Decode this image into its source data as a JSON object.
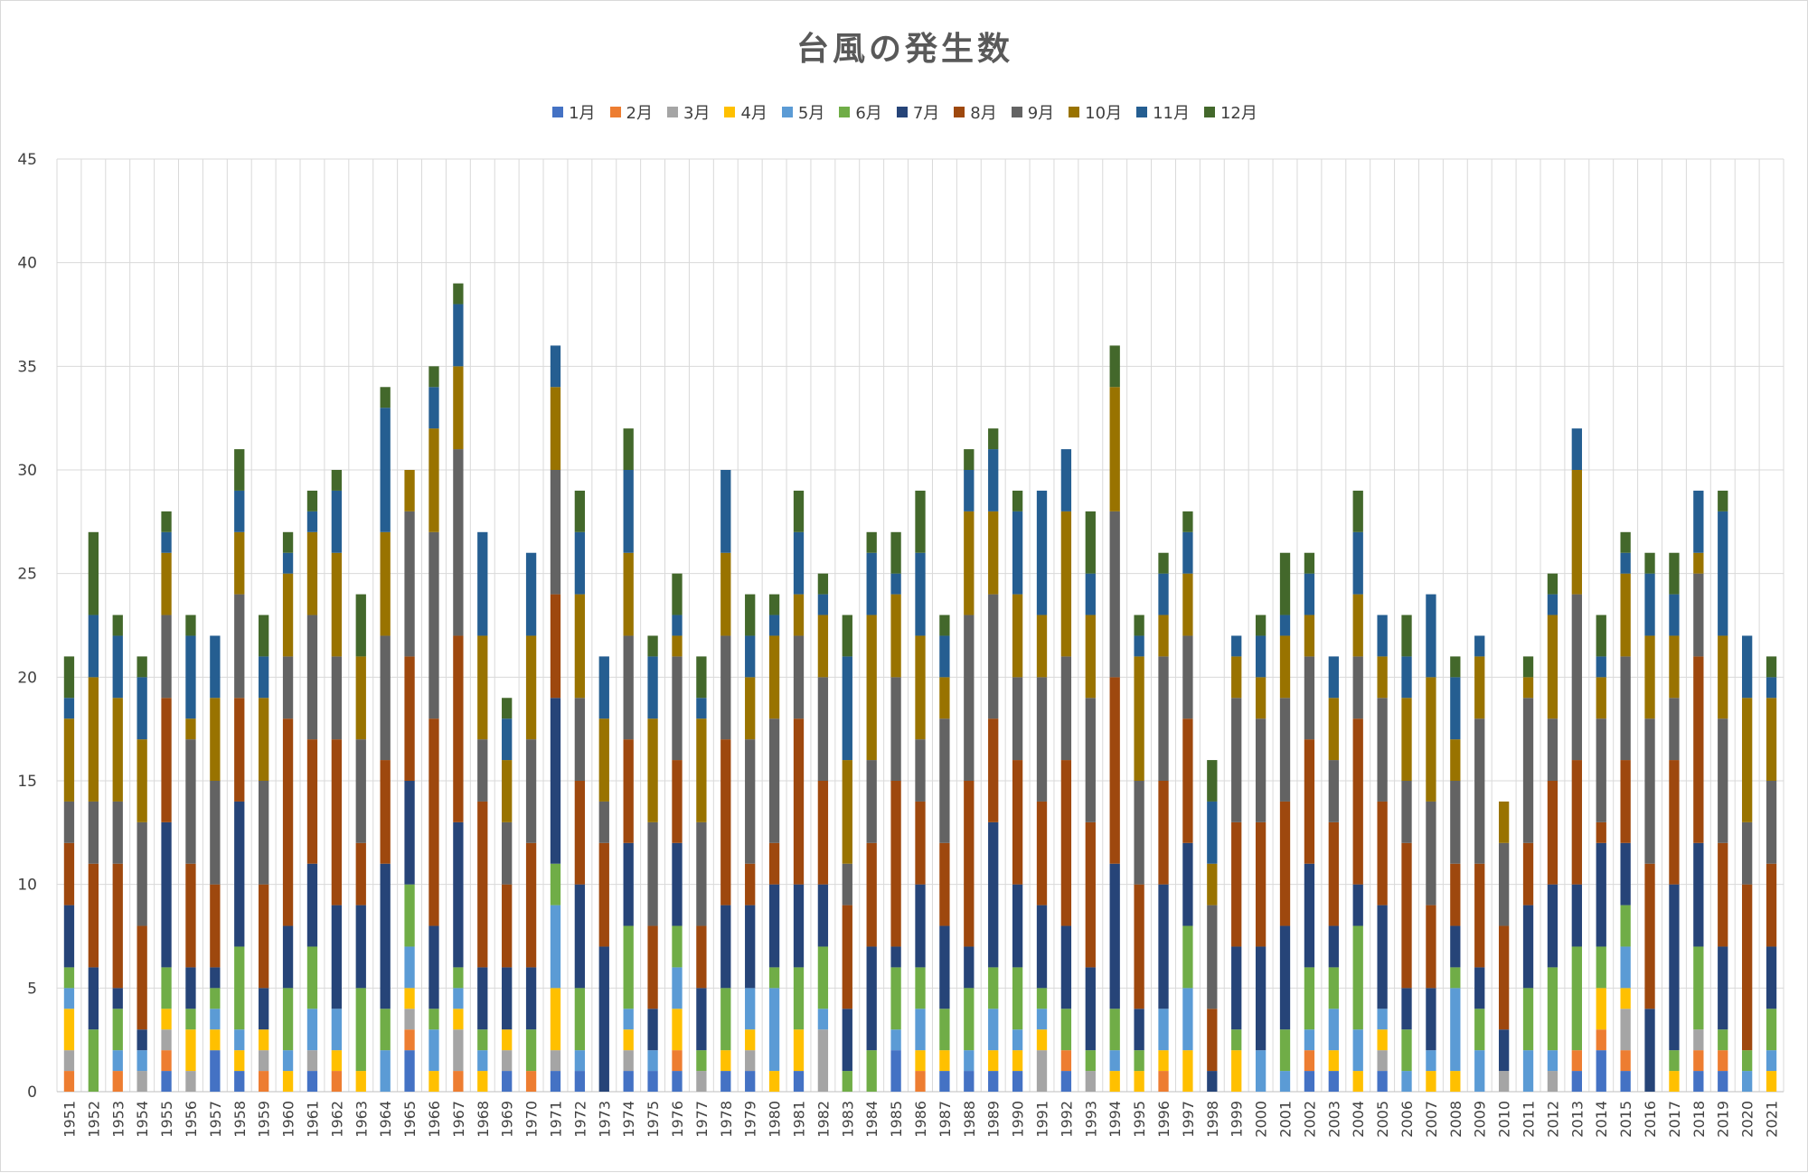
{
  "chart_data": {
    "type": "bar",
    "stacked": true,
    "title": "台風の発生数",
    "xlabel": "",
    "ylabel": "",
    "ylim": [
      0,
      45
    ],
    "yticks": [
      0,
      5,
      10,
      15,
      20,
      25,
      30,
      35,
      40,
      45
    ],
    "grid": true,
    "legend_position": "top",
    "categories": [
      "1951",
      "1952",
      "1953",
      "1954",
      "1955",
      "1956",
      "1957",
      "1958",
      "1959",
      "1960",
      "1961",
      "1962",
      "1963",
      "1964",
      "1965",
      "1966",
      "1967",
      "1968",
      "1969",
      "1970",
      "1971",
      "1972",
      "1973",
      "1974",
      "1975",
      "1976",
      "1977",
      "1978",
      "1979",
      "1980",
      "1981",
      "1982",
      "1983",
      "1984",
      "1985",
      "1986",
      "1987",
      "1988",
      "1989",
      "1990",
      "1991",
      "1992",
      "1993",
      "1994",
      "1995",
      "1996",
      "1997",
      "1998",
      "1999",
      "2000",
      "2001",
      "2002",
      "2003",
      "2004",
      "2005",
      "2006",
      "2007",
      "2008",
      "2009",
      "2010",
      "2011",
      "2012",
      "2013",
      "2014",
      "2015",
      "2016",
      "2017",
      "2018",
      "2019",
      "2020",
      "2021"
    ],
    "series": [
      {
        "name": "1月",
        "color": "#4472C4",
        "values": [
          0,
          0,
          0,
          0,
          1,
          0,
          2,
          1,
          0,
          0,
          1,
          0,
          0,
          0,
          2,
          0,
          0,
          0,
          1,
          0,
          1,
          1,
          0,
          1,
          1,
          1,
          0,
          1,
          1,
          0,
          1,
          0,
          0,
          0,
          2,
          0,
          1,
          1,
          1,
          1,
          0,
          1,
          0,
          0,
          0,
          0,
          0,
          0,
          0,
          0,
          0,
          1,
          1,
          0,
          1,
          0,
          0,
          0,
          0,
          0,
          0,
          0,
          1,
          2,
          1,
          0,
          0,
          1,
          1,
          0,
          0
        ]
      },
      {
        "name": "2月",
        "color": "#ED7D31",
        "values": [
          1,
          0,
          1,
          0,
          1,
          0,
          0,
          0,
          1,
          0,
          0,
          1,
          0,
          0,
          1,
          0,
          1,
          0,
          0,
          1,
          0,
          0,
          0,
          0,
          0,
          1,
          0,
          0,
          0,
          0,
          0,
          0,
          0,
          0,
          0,
          1,
          0,
          0,
          0,
          0,
          0,
          1,
          0,
          0,
          0,
          1,
          0,
          0,
          0,
          0,
          0,
          1,
          0,
          0,
          0,
          0,
          0,
          0,
          0,
          0,
          0,
          0,
          1,
          1,
          1,
          0,
          0,
          1,
          1,
          0,
          0
        ]
      },
      {
        "name": "3月",
        "color": "#A5A5A5",
        "values": [
          1,
          0,
          0,
          1,
          1,
          1,
          0,
          0,
          1,
          0,
          1,
          0,
          0,
          0,
          1,
          0,
          2,
          0,
          1,
          0,
          1,
          0,
          0,
          1,
          0,
          0,
          1,
          0,
          1,
          0,
          0,
          3,
          0,
          0,
          0,
          0,
          0,
          0,
          0,
          0,
          2,
          0,
          1,
          0,
          0,
          0,
          0,
          0,
          0,
          0,
          0,
          0,
          0,
          0,
          1,
          0,
          0,
          0,
          0,
          1,
          0,
          1,
          0,
          0,
          2,
          0,
          0,
          1,
          0,
          0,
          0
        ]
      },
      {
        "name": "4月",
        "color": "#FFC000",
        "values": [
          2,
          0,
          0,
          0,
          1,
          2,
          1,
          1,
          1,
          1,
          0,
          1,
          1,
          0,
          1,
          1,
          1,
          1,
          1,
          0,
          3,
          0,
          0,
          1,
          0,
          2,
          0,
          1,
          1,
          1,
          2,
          0,
          0,
          0,
          0,
          1,
          1,
          0,
          1,
          1,
          1,
          0,
          0,
          1,
          1,
          1,
          2,
          0,
          2,
          0,
          0,
          0,
          1,
          1,
          1,
          0,
          1,
          1,
          0,
          0,
          0,
          0,
          0,
          2,
          1,
          0,
          1,
          0,
          0,
          0,
          1
        ]
      },
      {
        "name": "5月",
        "color": "#5B9BD5",
        "values": [
          1,
          0,
          1,
          1,
          0,
          0,
          1,
          1,
          0,
          1,
          2,
          2,
          0,
          2,
          2,
          2,
          1,
          1,
          0,
          0,
          4,
          1,
          0,
          1,
          1,
          2,
          0,
          0,
          2,
          4,
          0,
          1,
          0,
          0,
          1,
          2,
          0,
          1,
          2,
          1,
          1,
          0,
          0,
          1,
          0,
          2,
          3,
          0,
          0,
          2,
          1,
          1,
          2,
          2,
          1,
          1,
          1,
          4,
          2,
          0,
          2,
          1,
          0,
          0,
          2,
          0,
          0,
          0,
          0,
          1,
          1
        ]
      },
      {
        "name": "6月",
        "color": "#70AD47",
        "values": [
          1,
          3,
          2,
          0,
          2,
          1,
          1,
          4,
          0,
          3,
          3,
          0,
          4,
          2,
          3,
          1,
          1,
          1,
          0,
          2,
          2,
          3,
          0,
          4,
          0,
          2,
          1,
          3,
          0,
          1,
          3,
          3,
          1,
          2,
          3,
          2,
          2,
          3,
          2,
          3,
          1,
          2,
          1,
          2,
          1,
          0,
          3,
          0,
          1,
          0,
          2,
          3,
          2,
          5,
          0,
          2,
          0,
          1,
          2,
          0,
          3,
          4,
          5,
          2,
          2,
          0,
          1,
          4,
          1,
          1,
          2
        ]
      },
      {
        "name": "7月",
        "color": "#264478",
        "values": [
          3,
          3,
          1,
          1,
          7,
          2,
          1,
          7,
          2,
          3,
          4,
          5,
          4,
          7,
          5,
          4,
          7,
          3,
          3,
          3,
          8,
          5,
          7,
          4,
          2,
          4,
          3,
          4,
          4,
          4,
          4,
          3,
          3,
          5,
          1,
          4,
          4,
          2,
          7,
          4,
          4,
          4,
          4,
          7,
          2,
          6,
          4,
          1,
          4,
          5,
          5,
          5,
          2,
          2,
          5,
          2,
          3,
          2,
          2,
          2,
          4,
          4,
          3,
          5,
          3,
          4,
          8,
          5,
          4,
          0,
          3
        ]
      },
      {
        "name": "8月",
        "color": "#9E480E",
        "values": [
          3,
          5,
          6,
          5,
          6,
          5,
          4,
          5,
          5,
          10,
          6,
          8,
          3,
          5,
          6,
          10,
          9,
          8,
          4,
          6,
          5,
          5,
          5,
          5,
          4,
          4,
          3,
          8,
          2,
          2,
          8,
          5,
          5,
          5,
          8,
          4,
          4,
          8,
          5,
          6,
          5,
          8,
          7,
          9,
          6,
          5,
          6,
          3,
          6,
          6,
          6,
          6,
          5,
          8,
          5,
          7,
          4,
          3,
          5,
          5,
          3,
          5,
          6,
          1,
          4,
          7,
          6,
          9,
          5,
          8,
          4
        ]
      },
      {
        "name": "9月",
        "color": "#636363",
        "values": [
          2,
          3,
          3,
          5,
          4,
          6,
          5,
          5,
          5,
          3,
          6,
          4,
          5,
          6,
          7,
          9,
          9,
          3,
          3,
          5,
          6,
          4,
          2,
          5,
          5,
          5,
          5,
          5,
          6,
          6,
          4,
          5,
          2,
          4,
          5,
          3,
          6,
          8,
          6,
          4,
          6,
          5,
          6,
          8,
          5,
          6,
          4,
          5,
          6,
          5,
          5,
          4,
          3,
          3,
          5,
          3,
          5,
          4,
          7,
          4,
          7,
          3,
          8,
          5,
          5,
          7,
          3,
          4,
          6,
          3,
          4
        ]
      },
      {
        "name": "10月",
        "color": "#997300",
        "values": [
          4,
          6,
          5,
          4,
          3,
          1,
          4,
          3,
          4,
          4,
          4,
          5,
          4,
          5,
          2,
          5,
          4,
          5,
          3,
          5,
          4,
          5,
          4,
          4,
          5,
          1,
          5,
          4,
          3,
          4,
          2,
          3,
          5,
          7,
          4,
          5,
          2,
          5,
          4,
          4,
          3,
          7,
          4,
          6,
          6,
          2,
          3,
          2,
          2,
          2,
          3,
          2,
          3,
          3,
          2,
          4,
          6,
          2,
          3,
          2,
          1,
          5,
          6,
          2,
          4,
          4,
          3,
          1,
          4,
          6,
          4
        ]
      },
      {
        "name": "11月",
        "color": "#255E91",
        "values": [
          1,
          3,
          3,
          3,
          1,
          4,
          3,
          2,
          2,
          1,
          1,
          3,
          0,
          6,
          0,
          2,
          3,
          5,
          2,
          4,
          2,
          3,
          3,
          4,
          3,
          1,
          1,
          4,
          2,
          1,
          3,
          1,
          5,
          3,
          1,
          4,
          2,
          2,
          3,
          4,
          6,
          3,
          2,
          0,
          1,
          2,
          2,
          3,
          1,
          2,
          1,
          2,
          2,
          3,
          2,
          2,
          4,
          3,
          1,
          0,
          0,
          1,
          2,
          1,
          1,
          3,
          2,
          3,
          6,
          3,
          1
        ]
      },
      {
        "name": "12月",
        "color": "#43682B",
        "values": [
          2,
          4,
          1,
          1,
          1,
          1,
          0,
          2,
          2,
          1,
          1,
          1,
          3,
          1,
          0,
          1,
          1,
          0,
          1,
          0,
          0,
          2,
          0,
          2,
          1,
          2,
          2,
          0,
          2,
          1,
          2,
          1,
          2,
          1,
          2,
          3,
          1,
          1,
          1,
          1,
          0,
          0,
          3,
          2,
          1,
          1,
          1,
          2,
          0,
          1,
          3,
          1,
          0,
          2,
          0,
          2,
          0,
          1,
          0,
          0,
          1,
          1,
          0,
          2,
          1,
          1,
          2,
          0,
          1,
          0,
          1
        ]
      }
    ]
  }
}
